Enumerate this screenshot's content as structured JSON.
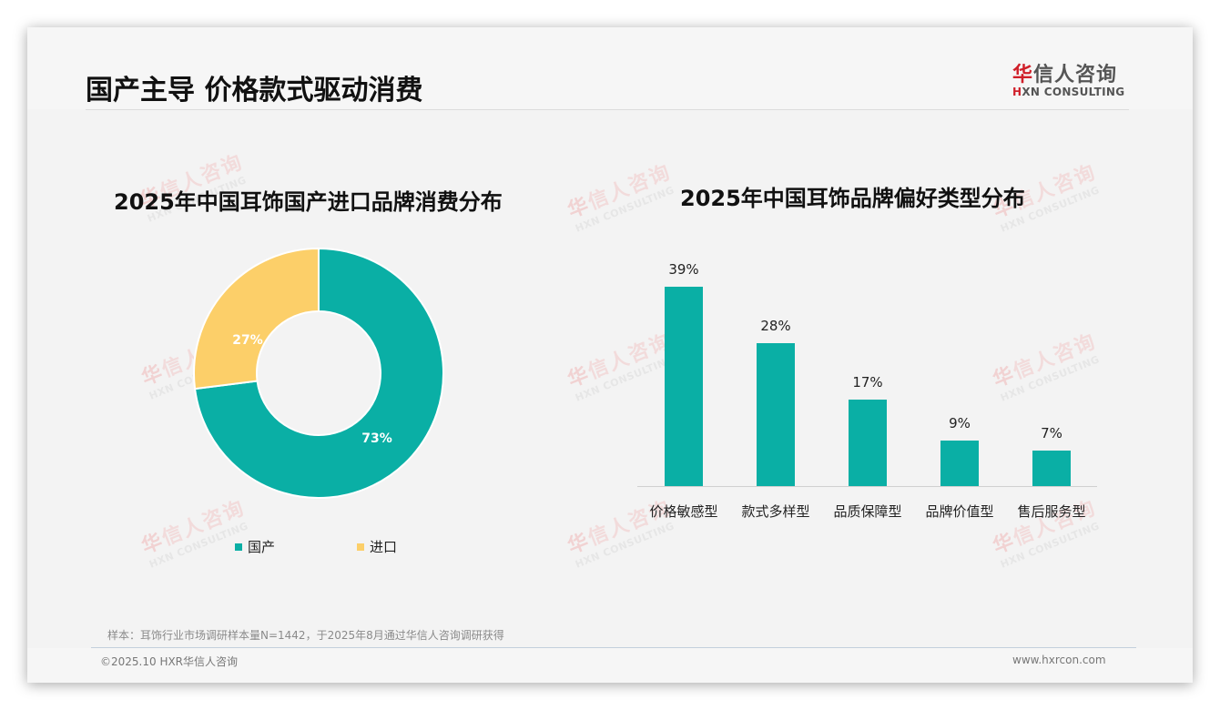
{
  "header": {
    "title": "国产主导 价格款式驱动消费",
    "logo_cn_red": "华",
    "logo_cn_rest": "信人咨询",
    "logo_en_h": "H",
    "logo_en_rest": "XN CONSULTING"
  },
  "watermark": {
    "cn_red": "华",
    "cn_rest": "信人咨询",
    "en": "HXN CONSULTING"
  },
  "colors": {
    "teal": "#0aafa5",
    "yellow": "#fccf69",
    "accent_red": "#d0202a"
  },
  "chart_data": [
    {
      "type": "pie",
      "variant": "donut",
      "title": "2025年中国耳饰国产进口品牌消费分布",
      "categories": [
        "国产",
        "进口"
      ],
      "values": [
        73,
        27
      ],
      "labels": [
        "73%",
        "27%"
      ],
      "colors": [
        "#0aafa5",
        "#fccf69"
      ],
      "legend_position": "bottom"
    },
    {
      "type": "bar",
      "title": "2025年中国耳饰品牌偏好类型分布",
      "categories": [
        "价格敏感型",
        "款式多样型",
        "品质保障型",
        "品牌价值型",
        "售后服务型"
      ],
      "values": [
        39,
        28,
        17,
        9,
        7
      ],
      "labels": [
        "39%",
        "28%",
        "17%",
        "9%",
        "7%"
      ],
      "color": "#0aafa5",
      "xlabel": "",
      "ylabel": "",
      "grid": false,
      "ylim": [
        0,
        45
      ]
    }
  ],
  "donut": {
    "title": "2025年中国耳饰国产进口品牌消费分布",
    "label_domestic": "73%",
    "label_import": "27%",
    "legend": [
      {
        "label": "国产",
        "color": "#0aafa5"
      },
      {
        "label": "进口",
        "color": "#fccf69"
      }
    ]
  },
  "bars": {
    "title": "2025年中国耳饰品牌偏好类型分布",
    "items": [
      {
        "category": "价格敏感型",
        "value": 39,
        "label": "39%"
      },
      {
        "category": "款式多样型",
        "value": 28,
        "label": "28%"
      },
      {
        "category": "品质保障型",
        "value": 17,
        "label": "17%"
      },
      {
        "category": "品牌价值型",
        "value": 9,
        "label": "9%"
      },
      {
        "category": "售后服务型",
        "value": 7,
        "label": "7%"
      }
    ]
  },
  "footer": {
    "note": "样本：耳饰行业市场调研样本量N=1442，于2025年8月通过华信人咨询调研获得",
    "copyright": "©2025.10 HXR华信人咨询",
    "website": "www.hxrcon.com"
  }
}
